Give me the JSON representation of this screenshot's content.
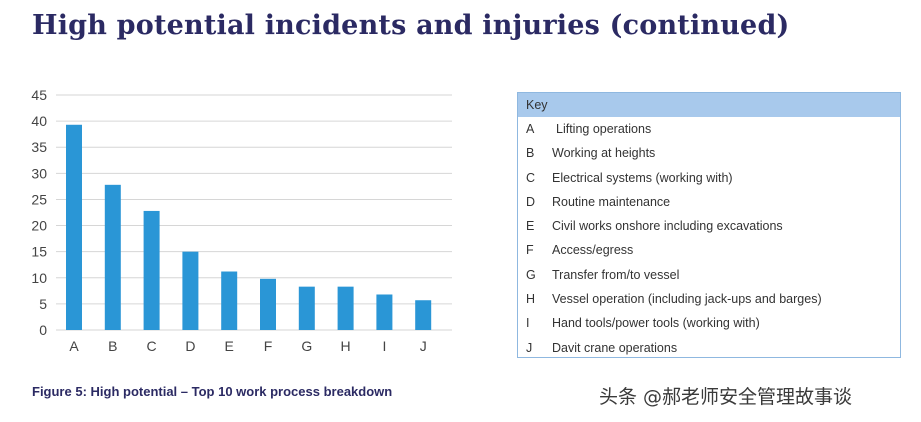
{
  "header": {
    "title": "High potential incidents and injuries (continued)"
  },
  "chart_data": {
    "type": "bar",
    "categories": [
      "A",
      "B",
      "C",
      "D",
      "E",
      "F",
      "G",
      "H",
      "I",
      "J"
    ],
    "values": [
      39.3,
      27.8,
      22.8,
      15,
      11.2,
      9.8,
      8.3,
      8.3,
      6.8,
      5.7
    ],
    "ylim": [
      0,
      45
    ],
    "yticks": [
      0,
      5,
      10,
      15,
      20,
      25,
      30,
      35,
      40,
      45
    ],
    "grid": true,
    "title": "",
    "xlabel": "",
    "ylabel": "",
    "bar_color": "#2a96d6",
    "grid_color": "#d6d6d6"
  },
  "key": {
    "header": "Key",
    "items": [
      {
        "letter": "A",
        "label": "Lifting operations"
      },
      {
        "letter": "B",
        "label": "Working at heights"
      },
      {
        "letter": "C",
        "label": "Electrical systems (working with)"
      },
      {
        "letter": "D",
        "label": "Routine maintenance"
      },
      {
        "letter": "E",
        "label": "Civil works onshore including excavations"
      },
      {
        "letter": "F",
        "label": "Access/egress"
      },
      {
        "letter": "G",
        "label": "Transfer from/to vessel"
      },
      {
        "letter": "H",
        "label": "Vessel operation (including jack-ups and barges)"
      },
      {
        "letter": "I",
        "label": "Hand tools/power tools (working with)"
      },
      {
        "letter": "J",
        "label": "Davit crane operations"
      }
    ]
  },
  "caption": "Figure 5: High potential – Top 10 work process breakdown",
  "watermark": "头条 @郝老师安全管理故事谈",
  "colors": {
    "title": "#2b2a63",
    "key_header_bg": "#a8c9ec",
    "key_border": "#8fb8e0"
  }
}
